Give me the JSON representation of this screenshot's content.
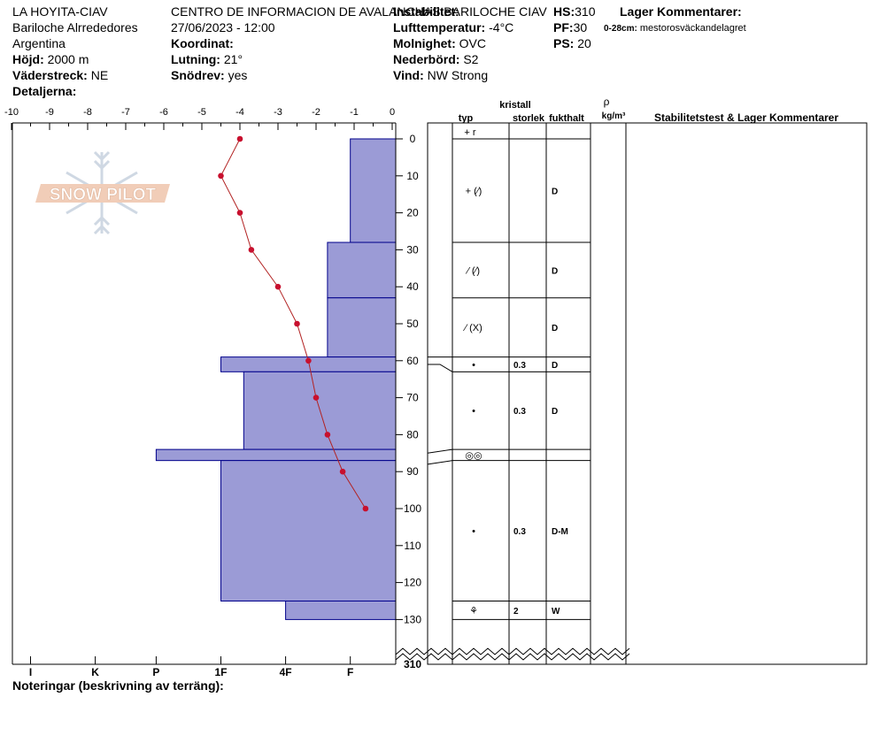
{
  "site": {
    "name": "LA HOYITA-CIAV",
    "area": "Bariloche Alrrededores",
    "country": "Argentina",
    "elevation_label": "Höjd:",
    "elevation": "2000 m",
    "aspect_label": "Väderstreck:",
    "aspect": "NE",
    "details_label": "Detaljerna:"
  },
  "observer": {
    "org": "CENTRO DE INFORMACION DE AVALANCHAS BARILOCHE CIAV",
    "datetime": "27/06/2023 - 12:00",
    "coord_label": "Koordinat:",
    "slope_label": "Lutning:",
    "slope": "21°",
    "drift_label": "Snödrev:",
    "drift": "yes"
  },
  "conditions": {
    "stability_label": "Instabilitet:",
    "air_temp_label": "Lufttemperatur:",
    "air_temp": "-4°C",
    "sky_label": "Molnighet:",
    "sky": "OVC",
    "precip_label": "Nederbörd:",
    "precip": "S2",
    "wind_label": "Vind:",
    "wind": "NW Strong"
  },
  "depths": {
    "hs_label": "HS:",
    "hs": "310",
    "pf_label": "PF:",
    "pf": "30",
    "ps_label": "PS:",
    "ps": "20"
  },
  "layer_comments": {
    "title": "Lager Kommentarer:",
    "items": [
      {
        "range": "0-28cm:",
        "text": "mestorosväckandelagret"
      }
    ]
  },
  "logo_text": "SNOW PILOT",
  "notes_label": "Noteringar (beskrivning av terräng):",
  "table_headers": {
    "kristall": "kristall",
    "typ": "typ",
    "storlek": "storlek",
    "fukthalt": "fukthalt",
    "rho": "ρ",
    "density_unit": "kg/m³",
    "comments": "Stabilitetstest & Lager Kommentarer"
  },
  "colors": {
    "hardness_fill": "#9b9bd6",
    "hardness_stroke": "#00008b",
    "temp_line": "#b22222",
    "temp_point": "#c8102e"
  },
  "chart_data": {
    "type": "snow_profile",
    "temp_axis": {
      "ticks": [
        "-10",
        "-9",
        "-8",
        "-7",
        "-6",
        "-5",
        "-4",
        "-3",
        "-2",
        "-1",
        "0"
      ],
      "range": [
        -10,
        0
      ]
    },
    "hardness_axis": {
      "labels": [
        "I",
        "K",
        "P",
        "1F",
        "4F",
        "F"
      ],
      "positions": [
        9.5,
        7.8,
        6.2,
        4.5,
        2.8,
        1.1
      ]
    },
    "depth_axis": {
      "ticks": [
        0,
        10,
        20,
        30,
        40,
        50,
        60,
        70,
        80,
        90,
        100,
        110,
        120,
        130
      ],
      "break_value": "310",
      "range": [
        0,
        310
      ]
    },
    "temperature_profile": [
      {
        "depth": 0,
        "temp": -4.0
      },
      {
        "depth": 10,
        "temp": -4.5
      },
      {
        "depth": 20,
        "temp": -4.0
      },
      {
        "depth": 30,
        "temp": -3.7
      },
      {
        "depth": 40,
        "temp": -3.0
      },
      {
        "depth": 50,
        "temp": -2.5
      },
      {
        "depth": 60,
        "temp": -2.2
      },
      {
        "depth": 70,
        "temp": -2.0
      },
      {
        "depth": 80,
        "temp": -1.7
      },
      {
        "depth": 90,
        "temp": -1.3
      },
      {
        "depth": 100,
        "temp": -0.7
      }
    ],
    "hardness_layers": [
      {
        "top": 0,
        "bottom": 28,
        "hardness": 1.1
      },
      {
        "top": 28,
        "bottom": 43,
        "hardness": 1.7
      },
      {
        "top": 43,
        "bottom": 59,
        "hardness": 1.7
      },
      {
        "top": 59,
        "bottom": 63,
        "hardness": 4.5
      },
      {
        "top": 63,
        "bottom": 84,
        "hardness": 3.9
      },
      {
        "top": 84,
        "bottom": 87,
        "hardness": 6.2
      },
      {
        "top": 87,
        "bottom": 125,
        "hardness": 4.5
      },
      {
        "top": 125,
        "bottom": 130,
        "hardness": 2.8
      }
    ],
    "layers": [
      {
        "top": 0,
        "bottom": 28,
        "grain": "+ (⁄)",
        "size": "",
        "moisture": "D"
      },
      {
        "top": 28,
        "bottom": 43,
        "grain": "⁄ (⁄)",
        "size": "",
        "moisture": "D"
      },
      {
        "top": 43,
        "bottom": 59,
        "grain": "⁄ (X)",
        "size": "",
        "moisture": "D"
      },
      {
        "top": 59,
        "bottom": 63,
        "grain": "•",
        "size": "0.3",
        "moisture": "D"
      },
      {
        "top": 63,
        "bottom": 84,
        "grain": "•",
        "size": "0.3",
        "moisture": "D"
      },
      {
        "top": 84,
        "bottom": 87,
        "grain": "◎◎",
        "size": "",
        "moisture": ""
      },
      {
        "top": 87,
        "bottom": 125,
        "grain": "•",
        "size": "0.3",
        "moisture": "D-M"
      },
      {
        "top": 125,
        "bottom": 130,
        "grain": "⚘",
        "size": "2",
        "moisture": "W"
      }
    ],
    "surface_grain": "+ r"
  }
}
